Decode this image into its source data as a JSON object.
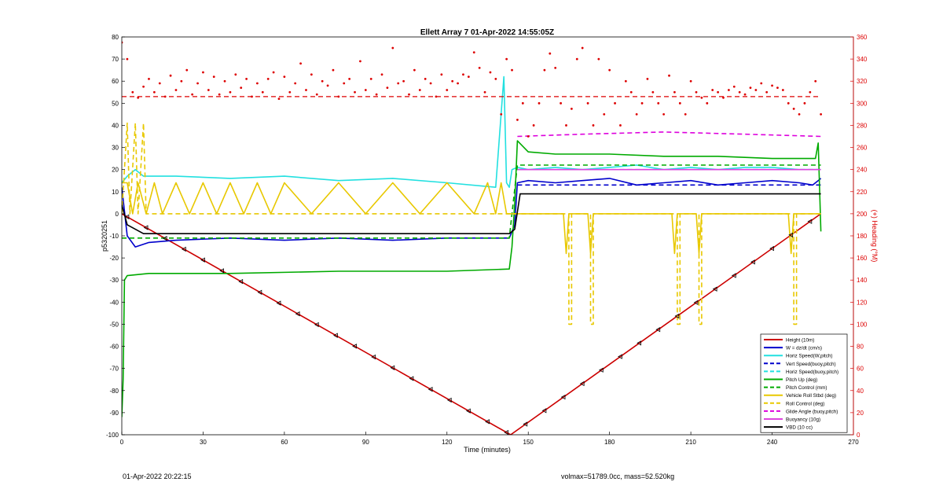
{
  "chart_data": {
    "type": "line",
    "title": "Ellett Array 7 01-Apr-2022 14:55:05Z",
    "xlabel": "Time (minutes)",
    "ylabel": "p5320251",
    "y2label": "(+) Heading (°M)",
    "xlim": [
      0,
      270
    ],
    "ylim": [
      -100,
      80
    ],
    "y2lim": [
      0,
      360
    ],
    "xticks": [
      "0",
      "30",
      "60",
      "90",
      "120",
      "150",
      "180",
      "210",
      "240",
      "270"
    ],
    "yticks": [
      "80",
      "70",
      "60",
      "50",
      "40",
      "30",
      "20",
      "10",
      "0",
      "-10",
      "-20",
      "-30",
      "-40",
      "-50",
      "-60",
      "-70",
      "-80",
      "-90",
      "-100"
    ],
    "y2ticks": [
      "360",
      "340",
      "320",
      "300",
      "280",
      "260",
      "240",
      "220",
      "200",
      "180",
      "160",
      "140",
      "120",
      "100",
      "80",
      "60",
      "40",
      "20",
      "0"
    ],
    "grid": false,
    "legend_position": "bottom-right",
    "colors": {
      "height": "#cc0000",
      "w": "#0000cc",
      "horiz": "#22e0e0",
      "pitch": "#00aa00",
      "roll": "#e8c800",
      "glide": "#dd00dd",
      "buoy": "#dd44dd",
      "vbd": "#000000",
      "heading": "#dd0000"
    },
    "series": [
      {
        "name": "Height (10m)",
        "style": "solid",
        "color_key": "height",
        "x": [
          0,
          143.5,
          143.5,
          258
        ],
        "y": [
          0,
          -100,
          -100,
          0
        ]
      },
      {
        "name": "W = dz/dt (cm/s)",
        "style": "solid",
        "color_key": "w",
        "x": [
          0,
          2,
          5,
          10,
          20,
          40,
          60,
          80,
          100,
          120,
          140,
          143,
          145,
          146,
          150,
          160,
          170,
          180,
          190,
          200,
          210,
          220,
          230,
          240,
          250,
          255,
          257,
          258
        ],
        "y": [
          12,
          -10,
          -15,
          -13,
          -12,
          -11,
          -12,
          -11,
          -12,
          -11,
          -11,
          -11,
          -5,
          14,
          15,
          14,
          15,
          16,
          13,
          14,
          15,
          13,
          14,
          15,
          14,
          13,
          15,
          16
        ]
      },
      {
        "name": "Horiz Speed(W,pitch)",
        "style": "solid",
        "color_key": "horiz",
        "x": [
          0,
          2,
          5,
          8,
          20,
          40,
          60,
          80,
          100,
          120,
          138,
          141,
          142,
          143,
          144,
          146,
          150,
          160,
          170,
          180,
          190,
          200,
          210,
          220,
          230,
          240,
          250,
          258
        ],
        "y": [
          14,
          17,
          20,
          17,
          17,
          16,
          17,
          15,
          16,
          14,
          12,
          62,
          14,
          12,
          20,
          21,
          20,
          21,
          20,
          21,
          22,
          20,
          21,
          20,
          21,
          21,
          20,
          20
        ]
      },
      {
        "name": "Vert Speed(buoy,pitch)",
        "style": "dashed",
        "color_key": "w",
        "x": [
          146,
          258
        ],
        "y": [
          13,
          13
        ]
      },
      {
        "name": "Horiz Speed(buoy,pitch)",
        "style": "dashed",
        "color_key": "horiz",
        "x": [
          146,
          258
        ],
        "y": [
          20,
          20
        ]
      },
      {
        "name": "Pitch Up (deg)",
        "style": "solid",
        "color_key": "pitch",
        "x": [
          0,
          0.5,
          1,
          2,
          10,
          40,
          80,
          120,
          143,
          144,
          145,
          146,
          150,
          160,
          180,
          200,
          220,
          240,
          256,
          257,
          258
        ],
        "y": [
          -92,
          -75,
          -30,
          -28,
          -27,
          -27,
          -26,
          -26,
          -25,
          -15,
          5,
          33,
          28,
          27,
          27,
          26,
          26,
          25,
          25,
          32,
          -8
        ]
      },
      {
        "name": "Pitch Control (mm)",
        "style": "dashed",
        "color_key": "pitch",
        "x": [
          0,
          143,
          144,
          146,
          258
        ],
        "y": [
          -11,
          -11,
          0,
          22,
          22
        ]
      },
      {
        "name": "Vehicle Roll Stbd (deg)",
        "style": "solid",
        "color_key": "roll",
        "x": [
          0,
          2,
          4,
          6,
          9,
          12,
          15,
          20,
          25,
          30,
          35,
          40,
          45,
          50,
          55,
          60,
          70,
          80,
          90,
          100,
          110,
          120,
          130,
          135,
          138,
          140,
          142,
          144,
          146,
          150,
          160,
          163,
          164,
          165,
          168,
          170,
          172,
          173,
          174,
          177,
          180,
          200,
          203,
          204,
          205,
          208,
          210,
          212,
          213,
          214,
          216,
          220,
          240,
          246,
          247,
          248,
          250,
          258
        ],
        "y": [
          14,
          14,
          0,
          14,
          0,
          14,
          0,
          14,
          0,
          14,
          0,
          14,
          0,
          14,
          0,
          14,
          0,
          14,
          0,
          14,
          0,
          14,
          0,
          14,
          0,
          14,
          0,
          0,
          0,
          0,
          0,
          0,
          -18,
          0,
          0,
          0,
          0,
          -18,
          0,
          0,
          0,
          0,
          0,
          -18,
          0,
          0,
          0,
          0,
          -18,
          0,
          0,
          0,
          0,
          0,
          -18,
          0,
          0,
          0
        ]
      },
      {
        "name": "Roll Control (deg)",
        "style": "dashed",
        "color_key": "roll",
        "x": [
          0,
          2,
          3,
          5,
          6,
          8,
          9,
          143,
          146,
          165,
          165,
          166,
          166,
          173,
          173,
          174,
          174,
          205,
          205,
          206,
          206,
          213,
          213,
          214,
          214,
          248,
          248,
          249,
          249,
          258
        ],
        "y": [
          0,
          41,
          0,
          41,
          0,
          41,
          0,
          0,
          0,
          0,
          -50,
          -50,
          0,
          0,
          -50,
          -50,
          0,
          0,
          -50,
          -50,
          0,
          0,
          -50,
          -50,
          0,
          0,
          -50,
          -50,
          0,
          0
        ]
      },
      {
        "name": "Glide Angle (buoy,pitch)",
        "style": "dashed",
        "color_key": "glide",
        "x": [
          146,
          170,
          200,
          230,
          258
        ],
        "y": [
          35,
          36,
          37,
          36,
          35
        ]
      },
      {
        "name": "Buoyancy (10g)",
        "style": "solid",
        "color_key": "buoy",
        "x": [
          146,
          258
        ],
        "y": [
          20,
          20
        ]
      },
      {
        "name": "VBD (10 cc)",
        "style": "solid",
        "color_key": "vbd",
        "x": [
          0,
          2,
          8,
          143,
          145,
          147,
          258
        ],
        "y": [
          4,
          -5,
          -9,
          -9,
          -7,
          9,
          9
        ]
      }
    ],
    "heading": {
      "axis": "right",
      "mean_level": 306,
      "x": [
        0,
        2,
        4,
        6,
        8,
        10,
        12,
        14,
        16,
        18,
        20,
        22,
        24,
        26,
        28,
        30,
        32,
        34,
        36,
        38,
        40,
        42,
        44,
        46,
        48,
        50,
        52,
        54,
        56,
        58,
        60,
        62,
        64,
        66,
        68,
        70,
        72,
        74,
        76,
        78,
        80,
        82,
        84,
        86,
        88,
        90,
        92,
        94,
        96,
        98,
        100,
        102,
        104,
        106,
        108,
        110,
        112,
        114,
        116,
        118,
        120,
        122,
        124,
        126,
        128,
        130,
        132,
        134,
        136,
        138,
        140,
        142,
        144,
        146,
        148,
        150,
        152,
        154,
        156,
        158,
        160,
        162,
        164,
        166,
        168,
        170,
        172,
        174,
        176,
        178,
        180,
        182,
        184,
        186,
        188,
        190,
        192,
        194,
        196,
        198,
        200,
        202,
        204,
        206,
        208,
        210,
        212,
        214,
        216,
        218,
        220,
        222,
        224,
        226,
        228,
        230,
        232,
        234,
        236,
        238,
        240,
        242,
        244,
        246,
        248,
        250,
        252,
        254,
        256,
        258
      ],
      "y": [
        355,
        340,
        310,
        305,
        315,
        322,
        310,
        318,
        306,
        325,
        312,
        320,
        330,
        308,
        318,
        328,
        312,
        324,
        308,
        320,
        310,
        326,
        314,
        322,
        306,
        318,
        310,
        322,
        328,
        304,
        324,
        310,
        318,
        336,
        312,
        326,
        308,
        320,
        316,
        330,
        306,
        318,
        322,
        310,
        338,
        312,
        322,
        308,
        326,
        314,
        350,
        318,
        320,
        308,
        330,
        312,
        322,
        318,
        306,
        326,
        312,
        320,
        318,
        326,
        324,
        346,
        332,
        310,
        328,
        322,
        290,
        340,
        330,
        285,
        300,
        270,
        280,
        300,
        330,
        345,
        332,
        300,
        280,
        295,
        340,
        350,
        300,
        280,
        340,
        290,
        330,
        300,
        280,
        320,
        310,
        290,
        300,
        322,
        310,
        300,
        290,
        325,
        310,
        300,
        290,
        320,
        310,
        305,
        300,
        312,
        310,
        305,
        312,
        315,
        310,
        308,
        314,
        312,
        318,
        310,
        316,
        314,
        312,
        300,
        295,
        290,
        300,
        310,
        320,
        290
      ]
    }
  },
  "legend": {
    "items": [
      {
        "label": "Height (10m)",
        "color_key": "height",
        "style": "solid"
      },
      {
        "label": "W = dz/dt (cm/s)",
        "color_key": "w",
        "style": "solid"
      },
      {
        "label": "Horiz Speed(W,pitch)",
        "color_key": "horiz",
        "style": "solid"
      },
      {
        "label": "Vert Speed(buoy,pitch)",
        "color_key": "w",
        "style": "dashed"
      },
      {
        "label": "Horiz Speed(buoy,pitch)",
        "color_key": "horiz",
        "style": "dashed"
      },
      {
        "label": "Pitch Up (deg)",
        "color_key": "pitch",
        "style": "solid"
      },
      {
        "label": "Pitch Control (mm)",
        "color_key": "pitch",
        "style": "dashed"
      },
      {
        "label": "Vehicle Roll Stbd (deg)",
        "color_key": "roll",
        "style": "solid"
      },
      {
        "label": "Roll Control (deg)",
        "color_key": "roll",
        "style": "dashed"
      },
      {
        "label": "Glide Angle (buoy,pitch)",
        "color_key": "glide",
        "style": "dashed"
      },
      {
        "label": "Buoyancy (10g)",
        "color_key": "buoy",
        "style": "solid"
      },
      {
        "label": "VBD (10 cc)",
        "color_key": "vbd",
        "style": "solid"
      }
    ]
  },
  "footer": {
    "left": "01-Apr-2022 20:22:15",
    "right": "volmax=51789.0cc, mass=52.520kg"
  }
}
